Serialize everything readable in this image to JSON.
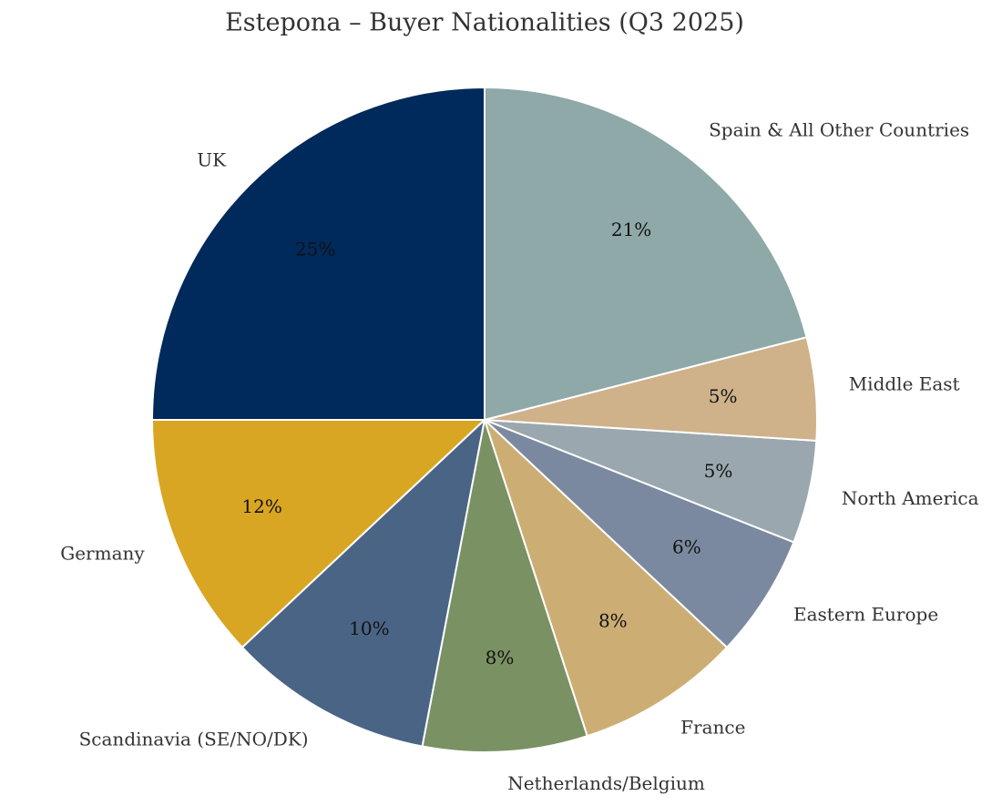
{
  "chart_data": {
    "type": "pie",
    "title": "Estepona – Buyer Nationalities (Q3 2025)",
    "labels": [
      "UK",
      "Germany",
      "Scandinavia (SE/NO/DK)",
      "Netherlands/Belgium",
      "France",
      "Eastern Europe",
      "North America",
      "Middle East",
      "Spain & All Other Countries"
    ],
    "values": [
      25,
      12,
      10,
      8,
      8,
      6,
      5,
      5,
      21
    ],
    "value_labels": [
      "25%",
      "12%",
      "10%",
      "8%",
      "8%",
      "6%",
      "5%",
      "5%",
      "21%"
    ],
    "colors": [
      "#002a5c",
      "#d9a623",
      "#4a6485",
      "#7a9163",
      "#ccad74",
      "#7b89a0",
      "#9aa7ae",
      "#cfb18a",
      "#8fa8a8"
    ]
  }
}
